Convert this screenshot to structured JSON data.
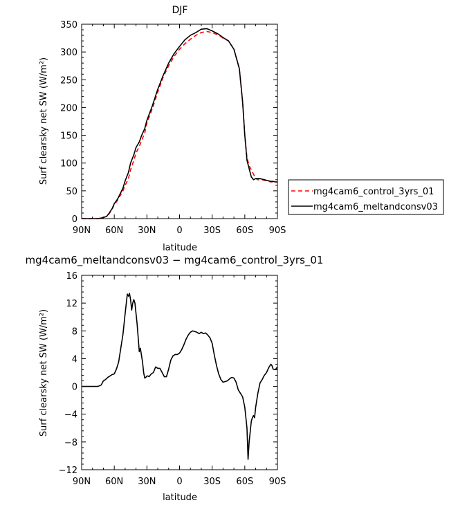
{
  "chart_data": [
    {
      "type": "line",
      "title": "DJF",
      "xlabel": "latitude",
      "ylabel": "Surf clearsky net SW (W/m²)",
      "ylim": [
        0,
        350
      ],
      "xlim": [
        90,
        -90
      ],
      "x_tick_values": [
        90,
        60,
        30,
        0,
        -30,
        -60,
        -90
      ],
      "x_tick_labels": [
        "90N",
        "60N",
        "30N",
        "0",
        "30S",
        "60S",
        "90S"
      ],
      "y_tick_values": [
        0,
        50,
        100,
        150,
        200,
        250,
        300,
        350
      ],
      "y_tick_labels": [
        "0",
        "50",
        "100",
        "150",
        "200",
        "250",
        "300",
        "350"
      ],
      "legend_position": "right",
      "series": [
        {
          "name": "mg4cam6_control_3yrs_01",
          "color": "#ff0000",
          "dash": "dashed",
          "x": [
            90,
            80,
            75,
            72,
            70,
            67,
            65,
            62,
            60,
            57,
            55,
            52,
            50,
            47,
            45,
            42,
            40,
            37,
            35,
            32,
            30,
            25,
            20,
            15,
            10,
            5,
            0,
            -5,
            -10,
            -15,
            -20,
            -25,
            -30,
            -35,
            -38,
            -40,
            -45,
            -50,
            -55,
            -58,
            -60,
            -62,
            -64,
            -66,
            -68,
            -70,
            -72,
            -74,
            -76,
            -78,
            -80,
            -82,
            -84,
            -86,
            -88,
            -90
          ],
          "y": [
            0,
            0,
            0,
            1,
            2,
            4,
            8,
            17,
            25,
            33,
            40,
            50,
            60,
            72,
            88,
            105,
            118,
            130,
            140,
            154,
            172,
            198,
            228,
            255,
            275,
            292,
            305,
            315,
            323,
            330,
            335,
            337,
            335,
            331,
            328,
            325,
            320,
            305,
            270,
            210,
            150,
            110,
            95,
            88,
            80,
            72,
            70,
            70,
            70,
            69,
            68,
            67,
            66,
            66,
            66,
            66
          ]
        },
        {
          "name": "mg4cam6_meltandconsv03",
          "color": "#000000",
          "dash": "solid",
          "x": [
            90,
            80,
            75,
            72,
            70,
            67,
            65,
            62,
            60,
            57,
            55,
            52,
            50,
            47,
            45,
            42,
            40,
            37,
            35,
            32,
            30,
            25,
            20,
            15,
            10,
            5,
            0,
            -5,
            -10,
            -15,
            -20,
            -25,
            -30,
            -35,
            -38,
            -40,
            -45,
            -50,
            -55,
            -58,
            -60,
            -62,
            -64,
            -66,
            -68,
            -70,
            -72,
            -74,
            -76,
            -78,
            -80,
            -82,
            -84,
            -86,
            -88,
            -90
          ],
          "y": [
            0,
            0,
            0,
            1,
            2,
            4,
            9,
            18,
            27,
            35,
            43,
            55,
            68,
            83,
            100,
            115,
            128,
            138,
            149,
            162,
            177,
            203,
            233,
            258,
            280,
            297,
            310,
            322,
            330,
            335,
            341,
            342,
            338,
            333,
            329,
            326,
            320,
            305,
            270,
            210,
            150,
            105,
            90,
            75,
            70,
            72,
            72,
            72,
            71,
            70,
            69,
            68,
            67,
            67,
            66,
            66
          ]
        }
      ]
    },
    {
      "type": "line",
      "title": "mg4cam6_meltandconsv03 − mg4cam6_control_3yrs_01",
      "xlabel": "latitude",
      "ylabel": "Surf clearsky net SW (W/m²)",
      "ylim": [
        -12,
        16
      ],
      "xlim": [
        90,
        -90
      ],
      "x_tick_values": [
        90,
        60,
        30,
        0,
        -30,
        -60,
        -90
      ],
      "x_tick_labels": [
        "90N",
        "60N",
        "30N",
        "0",
        "30S",
        "60S",
        "90S"
      ],
      "y_tick_values": [
        -12,
        -8,
        -4,
        0,
        4,
        8,
        12,
        16
      ],
      "y_tick_labels": [
        "−12",
        "−8",
        "−4",
        "0",
        "4",
        "8",
        "12",
        "16"
      ],
      "series": [
        {
          "color": "#000000",
          "dash": "solid",
          "x": [
            90,
            85,
            80,
            75,
            72,
            70,
            68,
            66,
            64,
            62,
            60,
            58,
            56,
            54,
            52,
            50,
            48,
            47,
            46,
            45,
            44,
            43,
            42,
            41,
            40,
            39,
            38,
            37,
            36,
            35,
            34,
            33,
            32,
            31,
            30,
            29,
            28,
            26,
            24,
            22,
            20,
            18,
            16,
            14,
            12,
            10,
            8,
            6,
            4,
            2,
            0,
            -2,
            -4,
            -6,
            -8,
            -10,
            -12,
            -14,
            -16,
            -18,
            -20,
            -22,
            -24,
            -26,
            -28,
            -30,
            -32,
            -34,
            -36,
            -38,
            -40,
            -42,
            -44,
            -46,
            -48,
            -50,
            -52,
            -54,
            -56,
            -58,
            -60,
            -62,
            -63,
            -64,
            -65,
            -66,
            -67,
            -68,
            -69,
            -70,
            -71,
            -72,
            -74,
            -76,
            -78,
            -80,
            -82,
            -84,
            -85,
            -86,
            -88,
            -90
          ],
          "y": [
            0,
            0,
            0,
            0,
            0.2,
            0.8,
            1.0,
            1.3,
            1.5,
            1.7,
            1.8,
            2.5,
            3.5,
            5.5,
            7.5,
            10.5,
            13.3,
            13.0,
            13.4,
            12.5,
            11.0,
            12.0,
            12.5,
            12.0,
            10.5,
            9.0,
            7.0,
            5.0,
            5.5,
            4.5,
            3.5,
            2.0,
            1.2,
            1.3,
            1.5,
            1.5,
            1.4,
            1.8,
            2.0,
            2.8,
            2.6,
            2.6,
            2.0,
            1.4,
            1.4,
            2.5,
            3.8,
            4.4,
            4.6,
            4.6,
            4.8,
            5.3,
            6.0,
            6.8,
            7.4,
            7.8,
            8.0,
            7.9,
            7.8,
            7.6,
            7.8,
            7.6,
            7.7,
            7.4,
            7.0,
            6.2,
            4.5,
            3.0,
            1.8,
            1.0,
            0.6,
            0.7,
            0.8,
            1.1,
            1.3,
            1.2,
            0.6,
            -0.5,
            -1.0,
            -1.5,
            -3.0,
            -6.0,
            -10.5,
            -8.0,
            -6.5,
            -5.0,
            -4.5,
            -4.2,
            -4.5,
            -3.0,
            -2.0,
            -1.0,
            0.5,
            1.0,
            1.6,
            2.0,
            2.7,
            3.2,
            3.0,
            2.5,
            2.4,
            2.8
          ]
        }
      ]
    }
  ]
}
